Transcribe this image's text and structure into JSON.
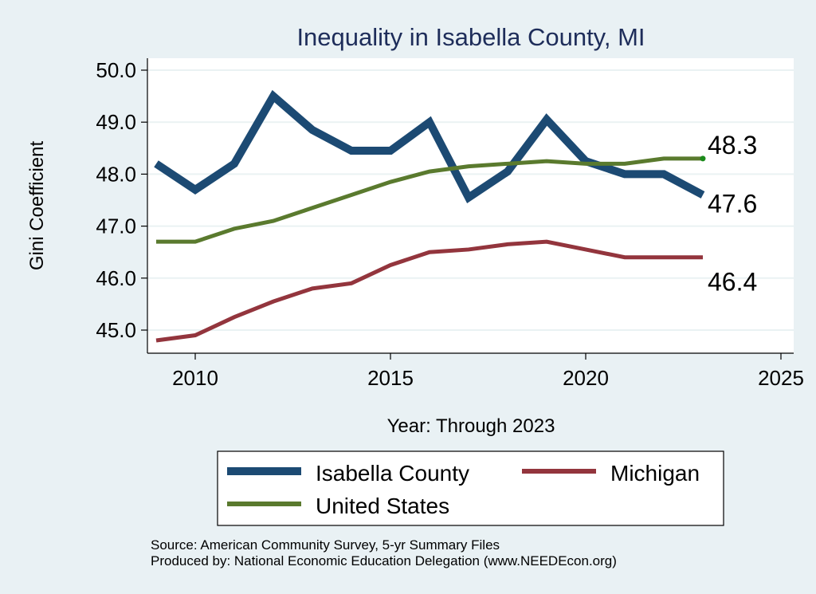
{
  "chart_data": {
    "type": "line",
    "title": "Inequality in Isabella County, MI",
    "xlabel": "Year: Through 2023",
    "ylabel": "Gini Coefficient",
    "xlim": [
      2008.75,
      2025.2
    ],
    "ylim": [
      44.8,
      50.25
    ],
    "x_ticks": [
      2010,
      2015,
      2020,
      2025
    ],
    "x_tick_labels": [
      "2010",
      "2015",
      "2020",
      "2025"
    ],
    "y_ticks": [
      45,
      46,
      47,
      48,
      49,
      50
    ],
    "y_tick_labels": [
      "45.0",
      "46.0",
      "47.0",
      "48.0",
      "49.0",
      "50.0"
    ],
    "grid": true,
    "legend_position": "bottom",
    "x": [
      2009,
      2010,
      2011,
      2012,
      2013,
      2014,
      2015,
      2016,
      2017,
      2018,
      2019,
      2020,
      2021,
      2022,
      2023
    ],
    "series": [
      {
        "name": "Isabella County",
        "color": "#1c4a73",
        "weight": "thick",
        "values": [
          48.2,
          47.7,
          48.2,
          49.5,
          48.85,
          48.45,
          48.45,
          49.0,
          47.55,
          48.05,
          49.05,
          48.25,
          48.0,
          48.0,
          47.6
        ],
        "end_label": "47.6"
      },
      {
        "name": "Michigan",
        "color": "#93353d",
        "weight": "medium",
        "values": [
          44.8,
          44.9,
          45.25,
          45.55,
          45.8,
          45.9,
          46.25,
          46.5,
          46.55,
          46.65,
          46.7,
          46.55,
          46.4,
          46.4,
          46.4
        ],
        "end_label": "46.4"
      },
      {
        "name": "United States",
        "color": "#5a7a2e",
        "weight": "medium",
        "values": [
          46.7,
          46.7,
          46.95,
          47.1,
          47.35,
          47.6,
          47.85,
          48.05,
          48.15,
          48.2,
          48.25,
          48.2,
          48.2,
          48.3,
          48.3
        ],
        "end_label": "48.3",
        "end_marker_color": "#1a8a1a"
      }
    ],
    "annotations": [
      "Source: American Community Survey, 5-yr Summary Files",
      "Produced by: National Economic Education Delegation (www.NEEDEcon.org)"
    ]
  },
  "legend": {
    "items": [
      "Isabella County",
      "Michigan",
      "United States"
    ]
  },
  "colors": {
    "background": "#e9f1f4",
    "plot_background": "#ffffff",
    "gridline": "#eaf2f3",
    "title": "#1e2d5a"
  }
}
